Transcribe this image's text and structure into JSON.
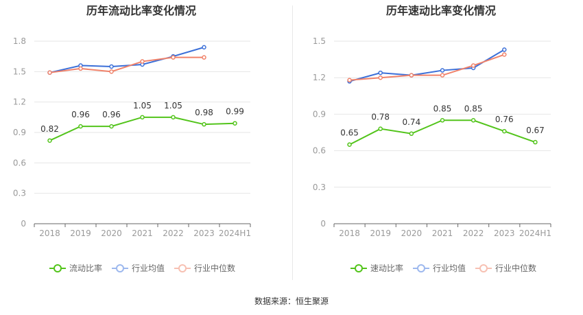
{
  "source": "数据来源：恒生聚源",
  "colors": {
    "main": "#52c41a",
    "avg": "#3b6fd8",
    "median": "#f0826a",
    "grid": "#e6e6e6",
    "axis": "#999999"
  },
  "legend_labels": {
    "avg": "行业均值",
    "median": "行业中位数"
  },
  "chart_data": [
    {
      "type": "line",
      "title": "历年流动比率变化情况",
      "categories": [
        "2018",
        "2019",
        "2020",
        "2021",
        "2022",
        "2023",
        "2024H1"
      ],
      "ylim": [
        0,
        1.8
      ],
      "yticks": [
        0,
        0.3,
        0.6,
        0.9,
        1.2,
        1.5,
        1.8
      ],
      "ytick_labels": [
        "0",
        "0.3",
        "0.6",
        "0.9",
        "1.2",
        "1.5",
        "1.8"
      ],
      "series": [
        {
          "key": "main",
          "name": "流动比率",
          "values": [
            0.82,
            0.96,
            0.96,
            1.05,
            1.05,
            0.98,
            0.99
          ],
          "labels": [
            "0.82",
            "0.96",
            "0.96",
            "1.05",
            "1.05",
            "0.98",
            "0.99"
          ]
        },
        {
          "key": "avg",
          "name": "行业均值",
          "values": [
            1.49,
            1.56,
            1.55,
            1.57,
            1.65,
            1.74,
            null
          ]
        },
        {
          "key": "median",
          "name": "行业中位数",
          "values": [
            1.49,
            1.53,
            1.5,
            1.6,
            1.64,
            1.64,
            null
          ]
        }
      ]
    },
    {
      "type": "line",
      "title": "历年速动比率变化情况",
      "categories": [
        "2018",
        "2019",
        "2020",
        "2021",
        "2022",
        "2023",
        "2024H1"
      ],
      "ylim": [
        0,
        1.5
      ],
      "yticks": [
        0,
        0.3,
        0.6,
        0.9,
        1.2,
        1.5
      ],
      "ytick_labels": [
        "0",
        "0.3",
        "0.6",
        "0.9",
        "1.2",
        "1.5"
      ],
      "series": [
        {
          "key": "main",
          "name": "速动比率",
          "values": [
            0.65,
            0.78,
            0.74,
            0.85,
            0.85,
            0.76,
            0.67
          ],
          "labels": [
            "0.65",
            "0.78",
            "0.74",
            "0.85",
            "0.85",
            "0.76",
            "0.67"
          ]
        },
        {
          "key": "avg",
          "name": "行业均值",
          "values": [
            1.17,
            1.24,
            1.22,
            1.26,
            1.28,
            1.43,
            null
          ]
        },
        {
          "key": "median",
          "name": "行业中位数",
          "values": [
            1.18,
            1.2,
            1.22,
            1.22,
            1.3,
            1.39,
            null
          ]
        }
      ]
    }
  ]
}
